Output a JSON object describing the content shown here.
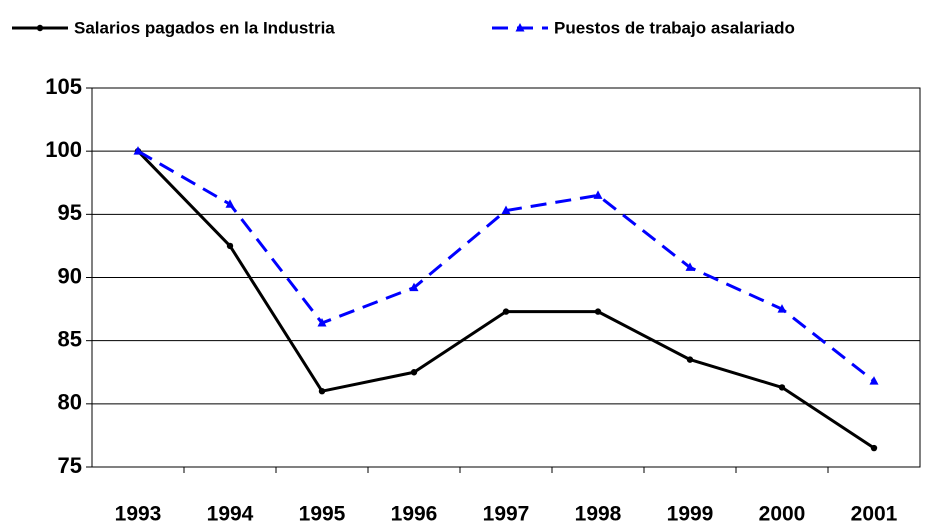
{
  "chart_data": {
    "type": "line",
    "categories": [
      "1993",
      "1994",
      "1995",
      "1996",
      "1997",
      "1998",
      "1999",
      "2000",
      "2001"
    ],
    "series": [
      {
        "name": "Salarios pagados en la Industria",
        "color": "#000000",
        "values": [
          100,
          92.5,
          81,
          82.5,
          87.3,
          87.3,
          83.5,
          81.3,
          76.5
        ]
      },
      {
        "name": "Puestos de trabajo asalariado",
        "color": "#0000ff",
        "values": [
          100,
          95.8,
          86.4,
          89.2,
          95.3,
          96.5,
          90.8,
          87.5,
          81.8
        ]
      }
    ],
    "ylim": [
      75,
      105
    ],
    "yticks": [
      75,
      80,
      85,
      90,
      95,
      100,
      105
    ],
    "grid": true,
    "legend": "top"
  }
}
